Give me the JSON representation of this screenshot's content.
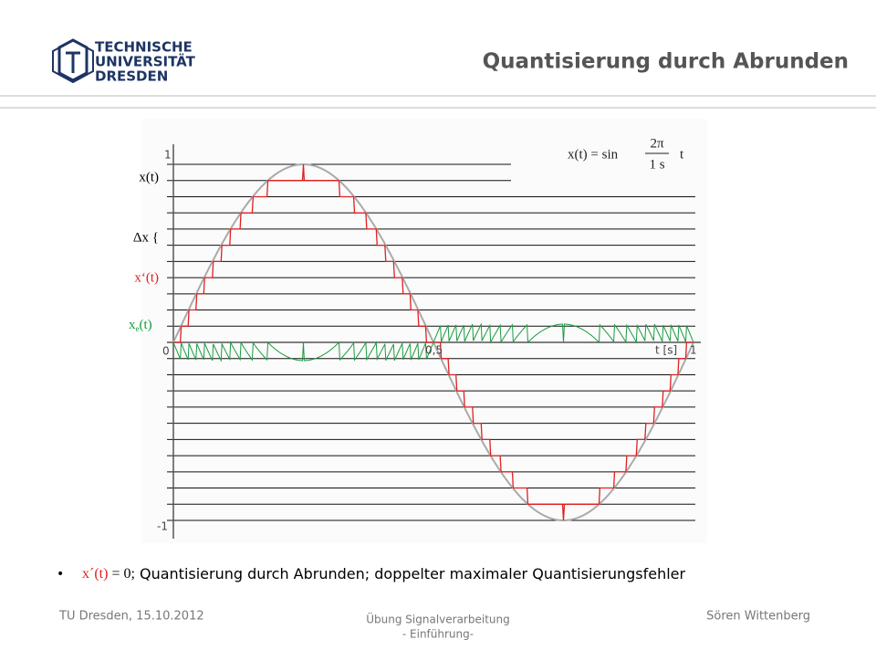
{
  "header": {
    "university": [
      "TECHNISCHE",
      "UNIVERSITÄT",
      "DRESDEN"
    ],
    "title": "Quantisierung durch Abrunden"
  },
  "figure": {
    "labels": {
      "signal": "x(t)",
      "step": "Δx {",
      "quantized": "x‘(t)",
      "error": "x",
      "error_sub": "e",
      "error_arg": "(t)"
    },
    "axis": {
      "y_top": "1",
      "y_bottom": "-1",
      "x_zero": "0",
      "x_half": "0,5",
      "x_end": "1",
      "x_unit": "t [s]"
    },
    "formula": {
      "lhs": "x(t) = sin",
      "num": "2π",
      "den": "1 s",
      "arg": "t"
    }
  },
  "bullet": {
    "symbol": "x´(t)",
    "eq": " = 0;",
    "text": " Quantisierung durch Abrunden; doppelter maximaler Quantisierungsfehler"
  },
  "footer": {
    "left": "TU Dresden, 15.10.2012",
    "center": [
      "Übung Signalverarbeitung",
      "- Einführung-"
    ],
    "right": "Sören Wittenberg"
  }
}
